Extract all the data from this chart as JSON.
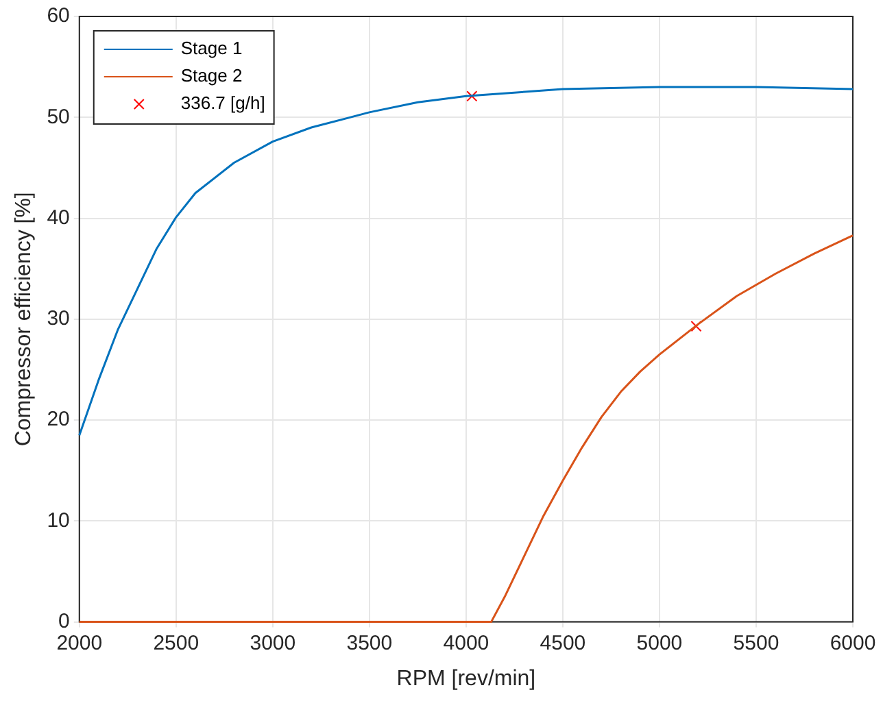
{
  "chart_data": {
    "type": "line",
    "xlabel": "RPM [rev/min]",
    "ylabel": "Compressor efficiency [%]",
    "xlim": [
      2000,
      6000
    ],
    "xticks": [
      2000,
      2500,
      3000,
      3500,
      4000,
      4500,
      5000,
      5500,
      6000
    ],
    "ylim": [
      0,
      60
    ],
    "yticks": [
      0,
      10,
      20,
      30,
      40,
      50,
      60
    ],
    "grid": true,
    "legend": "top left",
    "marker": "none",
    "series": [
      {
        "name": "Stage 1",
        "color": "#0072bd",
        "x": [
          2000,
          2100,
          2200,
          2300,
          2400,
          2500,
          2600,
          2800,
          3000,
          3200,
          3500,
          3750,
          4000,
          4500,
          5000,
          5500,
          6000
        ],
        "values": [
          18.5,
          24,
          29,
          33,
          37,
          40.1,
          42.5,
          45.5,
          47.6,
          49,
          50.5,
          51.5,
          52.1,
          52.8,
          53,
          53,
          52.8
        ]
      },
      {
        "name": "Stage 2",
        "color": "#d95319",
        "x": [
          2000,
          4130,
          4200,
          4300,
          4400,
          4500,
          4600,
          4700,
          4800,
          4900,
          5000,
          5200,
          5400,
          5600,
          5800,
          6000
        ],
        "values": [
          0,
          0,
          2.5,
          6.5,
          10.5,
          14,
          17.3,
          20.3,
          22.8,
          24.8,
          26.5,
          29.5,
          32.3,
          34.5,
          36.5,
          38.3
        ]
      },
      {
        "name": "336.7 [g/h]",
        "type": "scatter",
        "marker": "cross",
        "color": "#ff0000",
        "x": [
          4030,
          5190
        ],
        "values": [
          52.1,
          29.3
        ]
      }
    ]
  }
}
